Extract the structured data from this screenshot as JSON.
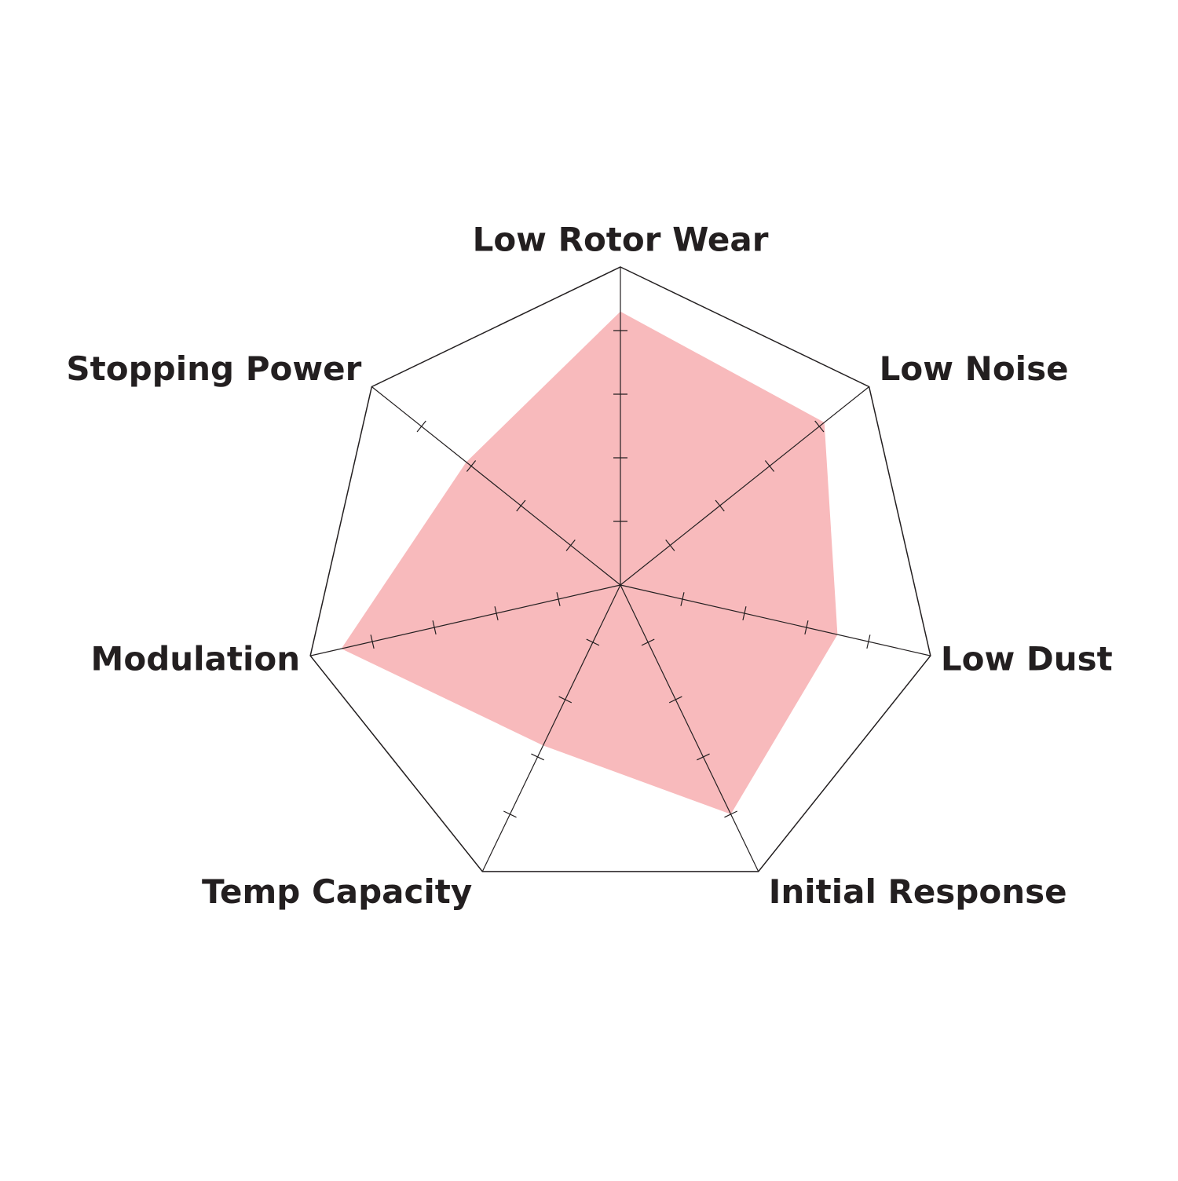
{
  "chart_data": {
    "type": "radar",
    "categories": [
      "Low Rotor Wear",
      "Low Noise",
      "Low Dust",
      "Initial Response",
      "Temp Capacity",
      "Modulation",
      "Stopping Power"
    ],
    "values": [
      4.3,
      4.1,
      3.5,
      4.0,
      2.8,
      4.5,
      3.1
    ],
    "color": "#f8babc",
    "rlim": [
      0,
      5
    ],
    "rticks": [
      1,
      2,
      3,
      4
    ]
  }
}
